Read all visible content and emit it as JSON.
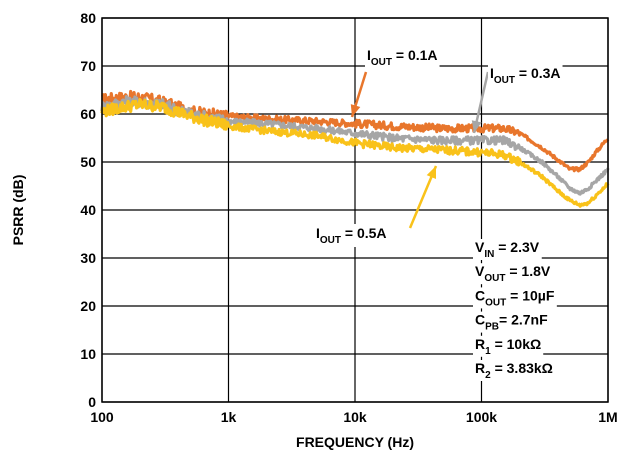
{
  "chart_data": {
    "type": "line",
    "title": "",
    "xlabel": "FREQUENCY (Hz)",
    "ylabel": "PSRR (dB)",
    "x_scale": "log",
    "xlim": [
      100,
      1000000
    ],
    "ylim": [
      0,
      80
    ],
    "grid": true,
    "x_ticks": [
      {
        "value": 100,
        "label": "100"
      },
      {
        "value": 1000,
        "label": "1k"
      },
      {
        "value": 10000,
        "label": "10k"
      },
      {
        "value": 100000,
        "label": "100k"
      },
      {
        "value": 1000000,
        "label": "1M"
      }
    ],
    "y_ticks": [
      0,
      10,
      20,
      30,
      40,
      50,
      60,
      70,
      80
    ],
    "series": [
      {
        "name": "IOUT = 0.1A",
        "label_main": "I",
        "label_sub": "OUT",
        "label_rest": " = 0.1A",
        "color": "#E8762C",
        "x": [
          100,
          150,
          200,
          300,
          500,
          1000,
          2000,
          5000,
          10000,
          20000,
          50000,
          100000,
          150000,
          200000,
          300000,
          400000,
          500000,
          600000,
          700000,
          800000,
          1000000
        ],
        "y": [
          63,
          63.5,
          63.5,
          62.5,
          60.5,
          59.5,
          59,
          58.5,
          58,
          57.5,
          57,
          57,
          57,
          56,
          53,
          50.5,
          48.5,
          48.5,
          50,
          52,
          55
        ]
      },
      {
        "name": "IOUT = 0.3A",
        "label_main": "I",
        "label_sub": "OUT",
        "label_rest": " = 0.3A",
        "color": "#A6A6A6",
        "x": [
          100,
          150,
          200,
          300,
          500,
          1000,
          2000,
          5000,
          10000,
          20000,
          50000,
          100000,
          150000,
          200000,
          300000,
          400000,
          500000,
          600000,
          700000,
          800000,
          1000000
        ],
        "y": [
          61.5,
          62.5,
          62.5,
          62,
          60,
          58.5,
          58,
          57,
          56,
          55,
          54.5,
          54.5,
          54.5,
          53,
          50,
          47,
          44.5,
          43.5,
          44.5,
          46,
          48.5
        ]
      },
      {
        "name": "IOUT = 0.5A",
        "label_main": "I",
        "label_sub": "OUT",
        "label_rest": " = 0.5A",
        "color": "#F9C21A",
        "x": [
          100,
          150,
          200,
          300,
          500,
          1000,
          2000,
          5000,
          10000,
          20000,
          50000,
          100000,
          150000,
          200000,
          300000,
          400000,
          500000,
          600000,
          700000,
          800000,
          1000000
        ],
        "y": [
          60.5,
          61.5,
          62,
          61.5,
          59.5,
          57.5,
          56.5,
          55.5,
          54,
          53,
          52.5,
          52,
          51.5,
          50,
          47,
          44,
          42,
          41,
          41.5,
          43,
          45.5
        ]
      }
    ],
    "conditions": [
      {
        "main": "V",
        "sub": "IN",
        "rest": " = 2.3V"
      },
      {
        "main": "V",
        "sub": "OUT",
        "rest": " = 1.8V"
      },
      {
        "main": "C",
        "sub": "OUT",
        "rest": " = 10µF"
      },
      {
        "main": "C",
        "sub": "PB",
        "rest": "= 2.7nF"
      },
      {
        "main": "R",
        "sub": "1",
        "rest": " = 10kΩ"
      },
      {
        "main": "R",
        "sub": "2",
        "rest": " = 3.83kΩ"
      }
    ]
  }
}
